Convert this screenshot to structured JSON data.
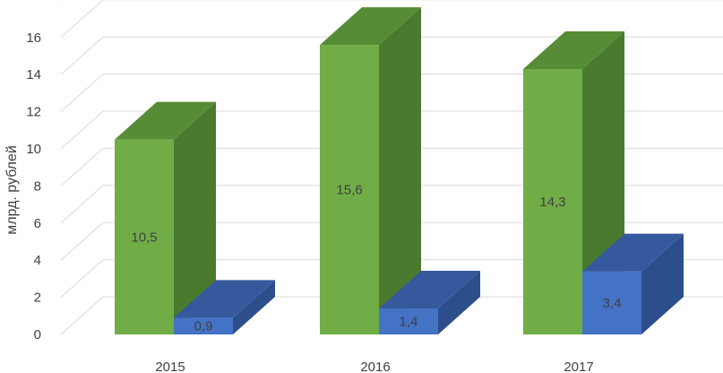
{
  "chart_data": {
    "type": "bar",
    "style": "3d-clustered-column",
    "title": "",
    "xlabel": "",
    "ylabel": "млрд. рублей",
    "ylim": [
      0,
      16
    ],
    "yticks": [
      0,
      2,
      4,
      6,
      8,
      10,
      12,
      14,
      16
    ],
    "ytick_labels": [
      "0",
      "2",
      "4",
      "6",
      "8",
      "10",
      "12",
      "14",
      "16"
    ],
    "grid": true,
    "legend": "none",
    "categories": [
      "2015",
      "2016",
      "2017"
    ],
    "series": [
      {
        "values": [
          10.5,
          15.6,
          14.3
        ],
        "labels": [
          "10,5",
          "15,6",
          "14,3"
        ],
        "colors": {
          "front": "#70ad47",
          "side": "#4a7a2e",
          "top": "#568c35"
        }
      },
      {
        "values": [
          0.9,
          1.4,
          3.4
        ],
        "labels": [
          "0,9",
          "1,4",
          "3,4"
        ],
        "colors": {
          "front": "#4472c4",
          "side": "#2c4f8c",
          "top": "#36599d"
        }
      }
    ]
  }
}
